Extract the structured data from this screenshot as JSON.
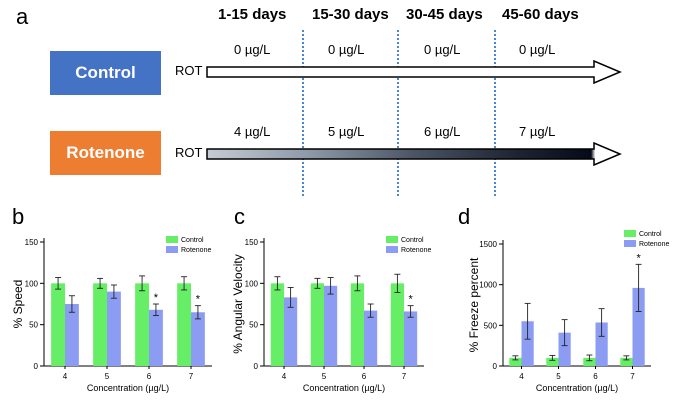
{
  "panel_a": {
    "letter": "a",
    "periods": [
      "1-15 days",
      "15-30 days",
      "30-45 days",
      "45-60 days"
    ],
    "groups": [
      {
        "name": "Control",
        "color": "#4472c4",
        "rot_label": "ROT",
        "doses": [
          "0 µg/L",
          "0 µg/L",
          "0 µg/L",
          "0 µg/L"
        ]
      },
      {
        "name": "Rotenone",
        "color": "#ed7d31",
        "rot_label": "ROT",
        "doses": [
          "4 µg/L",
          "5 µg/L",
          "6 µg/L",
          "7 µg/L"
        ]
      }
    ],
    "divider_color": "#4a86c8"
  },
  "panel_letters": {
    "b": "b",
    "c": "c",
    "d": "d"
  },
  "colors": {
    "control": "#66ee66",
    "rotenone": "#8c9cf2"
  },
  "chart_data": [
    {
      "type": "bar",
      "panel": "b",
      "categories": [
        "4",
        "5",
        "6",
        "7"
      ],
      "xlabel": "Concentration (µg/L)",
      "ylabel": "% Speed",
      "ylim": [
        0,
        150
      ],
      "yticks": [
        0,
        50,
        100,
        150
      ],
      "legend_position": "top-right",
      "series": [
        {
          "name": "Control",
          "values": [
            100,
            100,
            100,
            100
          ],
          "errors": [
            7,
            6,
            9,
            8
          ]
        },
        {
          "name": "Rotenone",
          "values": [
            75,
            90,
            68,
            65
          ],
          "errors": [
            10,
            8,
            7,
            8
          ]
        }
      ],
      "significance": [
        {
          "category": "6",
          "label": "*"
        },
        {
          "category": "7",
          "label": "*"
        }
      ]
    },
    {
      "type": "bar",
      "panel": "c",
      "categories": [
        "4",
        "5",
        "6",
        "7"
      ],
      "xlabel": "Concentration (µg/L)",
      "ylabel": "% Angular Velocity",
      "ylim": [
        0,
        150
      ],
      "yticks": [
        0,
        50,
        100,
        150
      ],
      "legend_position": "top-right",
      "series": [
        {
          "name": "Control",
          "values": [
            100,
            100,
            100,
            100
          ],
          "errors": [
            8,
            6,
            9,
            11
          ]
        },
        {
          "name": "Rotenone",
          "values": [
            83,
            97,
            67,
            66
          ],
          "errors": [
            12,
            10,
            8,
            7
          ]
        }
      ],
      "significance": [
        {
          "category": "7",
          "label": "*"
        }
      ]
    },
    {
      "type": "bar",
      "panel": "d",
      "categories": [
        "4",
        "5",
        "6",
        "7"
      ],
      "xlabel": "Concentration (µg/L)",
      "ylabel": "% Freeze percent",
      "ylim": [
        0,
        1500
      ],
      "yticks": [
        0,
        500,
        1000,
        1500
      ],
      "legend_position": "top-right",
      "series": [
        {
          "name": "Control",
          "values": [
            100,
            100,
            100,
            100
          ],
          "errors": [
            25,
            30,
            35,
            25
          ]
        },
        {
          "name": "Rotenone",
          "values": [
            550,
            410,
            535,
            960
          ],
          "errors": [
            220,
            160,
            170,
            290
          ]
        }
      ],
      "significance": [
        {
          "category": "7",
          "label": "*"
        }
      ]
    }
  ]
}
